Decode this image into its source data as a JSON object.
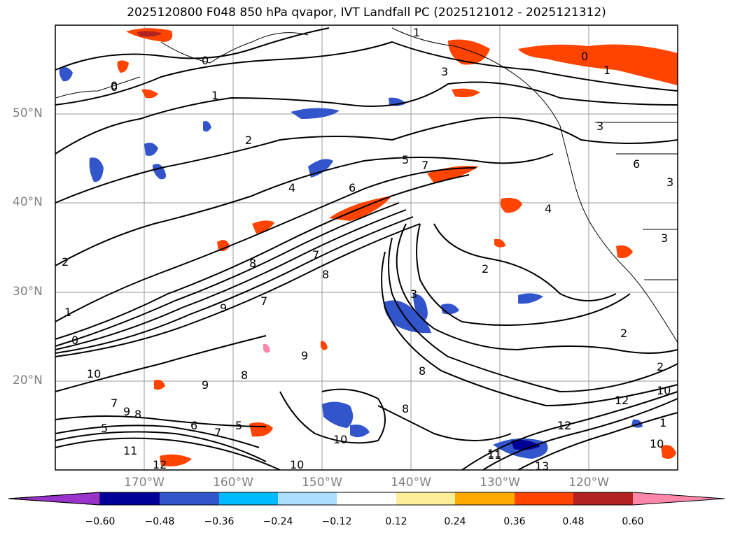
{
  "title": "2025120800 F048 850 hPa qvapor, IVT Landfall PC (2025121012 - 2025121312)",
  "lat_labels": [
    "50°N",
    "40°N",
    "30°N",
    "20°N"
  ],
  "lon_labels": [
    "170°W",
    "160°W",
    "150°W",
    "140°W",
    "130°W",
    "120°W"
  ],
  "colorbar": {
    "tick_labels": [
      "−0.60",
      "−0.48",
      "−0.36",
      "−0.24",
      "−0.12",
      "0.12",
      "0.24",
      "0.36",
      "0.48",
      "0.60"
    ],
    "colors": [
      "#9933cc",
      "#000099",
      "#3355cc",
      "#00bbff",
      "#aaddff",
      "#ffffff",
      "#ffee99",
      "#ffaa00",
      "#ff4400",
      "#b22222",
      "#ff88aa"
    ]
  },
  "contour_labels": [
    "0",
    "1",
    "3",
    "0",
    "1",
    "0",
    "1",
    "2",
    "3",
    "4",
    "5",
    "6",
    "7",
    "3",
    "6",
    "4",
    "7",
    "8",
    "8",
    "7",
    "9",
    "2",
    "1",
    "0",
    "2",
    "9",
    "10",
    "9",
    "8",
    "10",
    "9",
    "8",
    "8",
    "11",
    "12",
    "13",
    "10",
    "11",
    "12",
    "7",
    "8",
    "5",
    "6",
    "5",
    "7",
    "11",
    "12",
    "10",
    "3",
    "2",
    "3",
    "2",
    "10",
    "12",
    "0",
    "1"
  ]
}
